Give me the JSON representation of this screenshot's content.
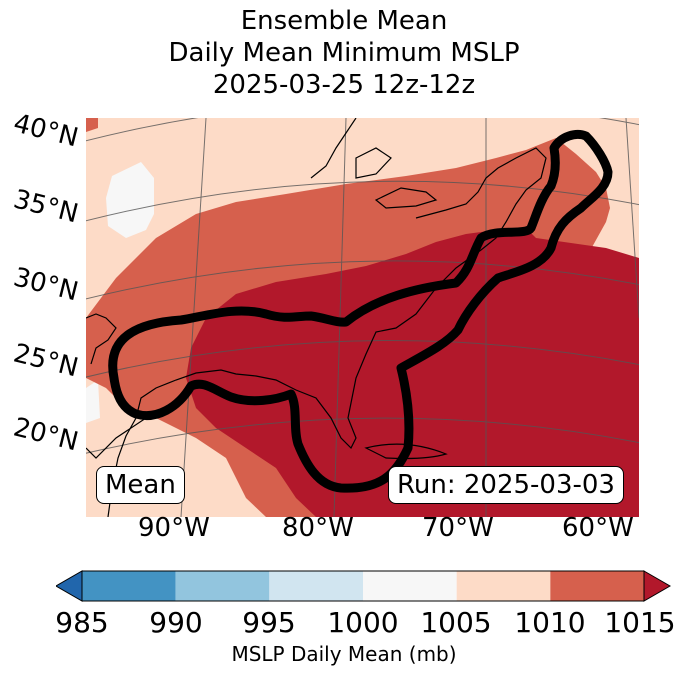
{
  "title": {
    "line1": "Ensemble Mean",
    "line2": "Daily Mean Minimum MSLP",
    "line3": "2025-03-25 12z-12z"
  },
  "map": {
    "lat_labels": [
      "40°N",
      "35°N",
      "30°N",
      "25°N",
      "20°N"
    ],
    "lon_labels": [
      "90°W",
      "80°W",
      "70°W",
      "60°W"
    ],
    "mean_label": "Mean",
    "run_label": "Run: 2025-03-03",
    "colors": {
      "very_low": "#f7f7f7",
      "low": "#fddbc7",
      "mid": "#d6604d",
      "high": "#b2182b",
      "contour": "#000000"
    }
  },
  "colorbar": {
    "label": "MSLP Daily Mean (mb)",
    "ticks": [
      "985",
      "990",
      "995",
      "1000",
      "1005",
      "1010",
      "1015"
    ],
    "colors": [
      "#4393c3",
      "#92c5de",
      "#d1e5f0",
      "#f7f7f7",
      "#fddbc7",
      "#d6604d",
      "#b2182b"
    ],
    "under_color": "#2166ac",
    "over_color": "#b2182b"
  }
}
